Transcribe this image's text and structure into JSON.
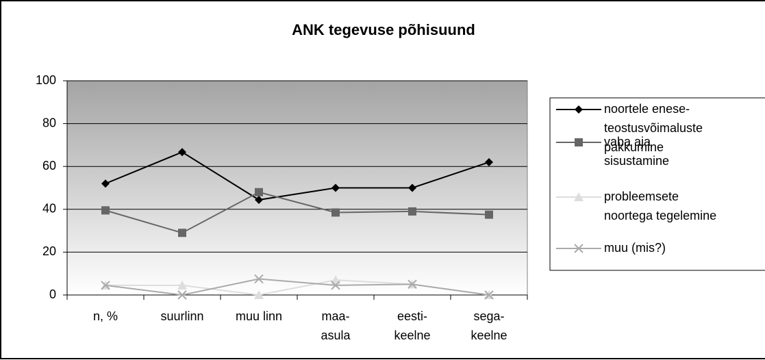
{
  "chart_data": {
    "type": "line",
    "title": "ANK tegevuse põhisuund",
    "categories": [
      "n, %",
      "suurlinn",
      "muu linn",
      "maa-\nasula",
      "eesti-\nkeelne",
      "sega-\nkeelne"
    ],
    "series": [
      {
        "name": "noortele enese-\nteostusvõimaluste\npakkumine",
        "color": "#000000",
        "marker": "diamond",
        "values": [
          52,
          66.7,
          44.4,
          50,
          50,
          62
        ]
      },
      {
        "name": "vaba aja\nsisustamine",
        "color": "#666666",
        "marker": "square",
        "values": [
          39.5,
          29,
          48,
          38.5,
          39,
          37.5
        ]
      },
      {
        "name": "probleemsete\nnoortega tegelemine",
        "color": "#dddddd",
        "marker": "triangle",
        "values": [
          4.5,
          4.5,
          0,
          7,
          5,
          0
        ]
      },
      {
        "name": "muu (mis?)",
        "color": "#aaaaaa",
        "marker": "x",
        "values": [
          4.5,
          0,
          7.5,
          4.5,
          5,
          0
        ]
      }
    ],
    "ylim": [
      0,
      100
    ],
    "yticks": [
      0,
      20,
      40,
      60,
      80,
      100
    ],
    "grid": true
  }
}
